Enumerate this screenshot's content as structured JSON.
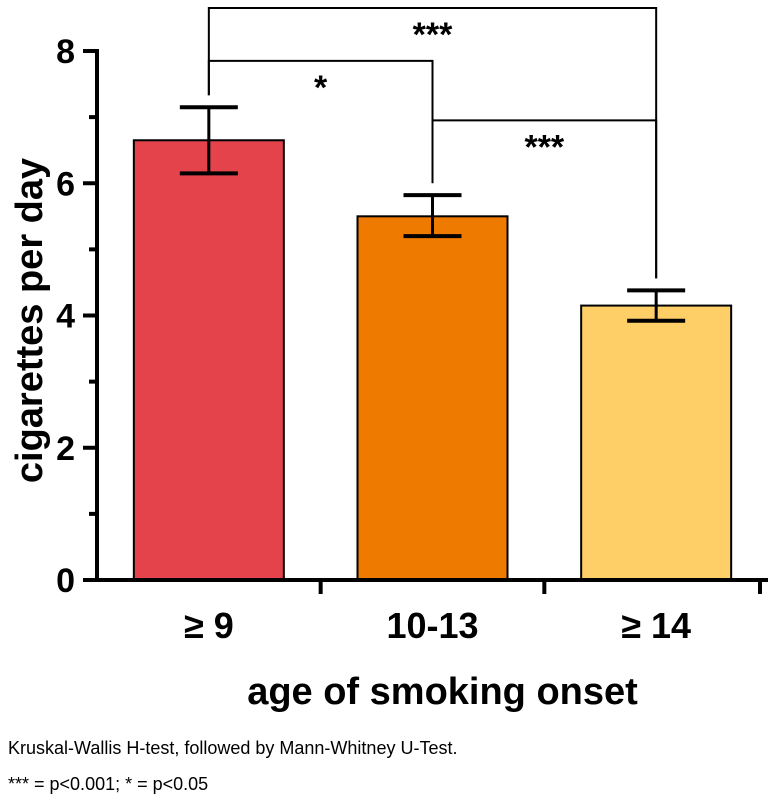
{
  "chart_data": {
    "type": "bar",
    "categories": [
      "≥ 9",
      "10-13",
      "≥ 14"
    ],
    "values": [
      6.65,
      5.5,
      4.15
    ],
    "error_upper": [
      7.15,
      5.82,
      4.38
    ],
    "error_lower": [
      6.15,
      5.2,
      3.92
    ],
    "bar_colors": [
      "#e4434b",
      "#ee7a00",
      "#fece67"
    ],
    "xlabel": "age of smoking onset",
    "ylabel": "cigarettes per day",
    "ylim": [
      0,
      8
    ],
    "yticks": [
      0,
      2,
      4,
      6,
      8
    ],
    "grid": false,
    "legend": "none",
    "significance": [
      {
        "from": 0,
        "to": 1,
        "label": "*",
        "level": 7.85
      },
      {
        "from": 0,
        "to": 2,
        "label": "***",
        "level": 8.7
      },
      {
        "from": 1,
        "to": 2,
        "label": "***",
        "level": 6.95
      }
    ]
  },
  "footnotes": {
    "line1": "Kruskal-Wallis H-test, followed by Mann-Whitney U-Test.",
    "line2": "*** = p<0.001; * = p<0.05"
  }
}
